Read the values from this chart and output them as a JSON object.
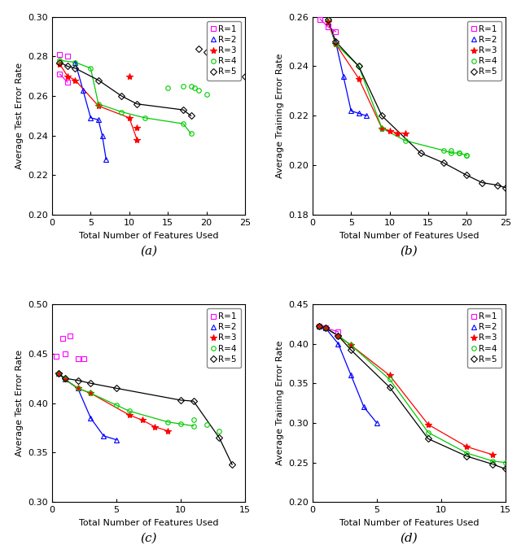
{
  "panels": [
    {
      "label": "(a)",
      "ylabel": "Average Test Error Rate",
      "xlabel": "Total Number of Features Used",
      "xlim": [
        0,
        25
      ],
      "ylim": [
        0.2,
        0.3
      ],
      "yticks": [
        0.2,
        0.22,
        0.24,
        0.26,
        0.28,
        0.3
      ],
      "xticks": [
        0,
        5,
        10,
        15,
        20,
        25
      ],
      "series": {
        "R1": {
          "color": "#FF00FF",
          "marker": "s",
          "line_x": [
            1,
            2
          ],
          "line_y": [
            0.271,
            0.267
          ],
          "scatter_x": [
            1,
            2
          ],
          "scatter_y": [
            0.281,
            0.28
          ]
        },
        "R2": {
          "color": "#0000FF",
          "marker": "^",
          "line_x": [
            3,
            4,
            5,
            6,
            6.5,
            7
          ],
          "line_y": [
            0.277,
            0.263,
            0.249,
            0.248,
            0.24,
            0.228
          ],
          "scatter_x": [],
          "scatter_y": []
        },
        "R3": {
          "color": "#FF0000",
          "marker": "*",
          "line_x": [
            1,
            2,
            3,
            6,
            10,
            11
          ],
          "line_y": [
            0.276,
            0.27,
            0.268,
            0.255,
            0.249,
            0.238
          ],
          "scatter_x": [
            10,
            11
          ],
          "scatter_y": [
            0.27,
            0.244
          ]
        },
        "R4": {
          "color": "#00CC00",
          "marker": "o",
          "line_x": [
            1,
            3,
            5,
            6,
            9,
            12,
            17,
            18
          ],
          "line_y": [
            0.278,
            0.277,
            0.274,
            0.256,
            0.252,
            0.249,
            0.246,
            0.241
          ],
          "scatter_x": [
            15,
            17,
            18,
            18.5,
            19,
            20
          ],
          "scatter_y": [
            0.264,
            0.265,
            0.265,
            0.264,
            0.263,
            0.261
          ]
        },
        "R5": {
          "color": "#000000",
          "marker": "D",
          "line_x": [
            1,
            2,
            3,
            6,
            9,
            11,
            17,
            18
          ],
          "line_y": [
            0.277,
            0.275,
            0.274,
            0.268,
            0.26,
            0.256,
            0.253,
            0.25
          ],
          "scatter_x": [
            19,
            20,
            20.5,
            21,
            22,
            22.5,
            23,
            24,
            25
          ],
          "scatter_y": [
            0.284,
            0.282,
            0.28,
            0.279,
            0.275,
            0.274,
            0.271,
            0.27,
            0.27
          ]
        }
      }
    },
    {
      "label": "(b)",
      "ylabel": "Average Training Error Rate",
      "xlabel": "Total Number of Features Used",
      "xlim": [
        0,
        25
      ],
      "ylim": [
        0.18,
        0.26
      ],
      "yticks": [
        0.18,
        0.2,
        0.22,
        0.24,
        0.26
      ],
      "xticks": [
        0,
        5,
        10,
        15,
        20,
        25
      ],
      "series": {
        "R1": {
          "color": "#FF00FF",
          "marker": "s",
          "line_x": [
            1,
            2,
            3
          ],
          "line_y": [
            0.259,
            0.256,
            0.254
          ],
          "scatter_x": [],
          "scatter_y": []
        },
        "R2": {
          "color": "#0000FF",
          "marker": "^",
          "line_x": [
            2,
            3,
            4,
            5,
            6,
            7
          ],
          "line_y": [
            0.258,
            0.25,
            0.236,
            0.222,
            0.221,
            0.22
          ],
          "scatter_x": [],
          "scatter_y": []
        },
        "R3": {
          "color": "#FF0000",
          "marker": "*",
          "line_x": [
            2,
            3,
            6,
            9,
            10,
            11,
            12
          ],
          "line_y": [
            0.258,
            0.249,
            0.235,
            0.215,
            0.214,
            0.213,
            0.213
          ],
          "scatter_x": [],
          "scatter_y": []
        },
        "R4": {
          "color": "#00CC00",
          "marker": "o",
          "line_x": [
            2,
            3,
            6,
            9,
            12,
            17,
            18,
            19,
            20
          ],
          "line_y": [
            0.259,
            0.249,
            0.24,
            0.215,
            0.21,
            0.206,
            0.205,
            0.205,
            0.204
          ],
          "scatter_x": [
            18,
            19,
            20
          ],
          "scatter_y": [
            0.206,
            0.205,
            0.204
          ]
        },
        "R5": {
          "color": "#000000",
          "marker": "D",
          "line_x": [
            2,
            3,
            6,
            9,
            14,
            17,
            20,
            22,
            24,
            25
          ],
          "line_y": [
            0.259,
            0.25,
            0.24,
            0.22,
            0.205,
            0.201,
            0.196,
            0.193,
            0.192,
            0.191
          ],
          "scatter_x": [],
          "scatter_y": []
        }
      }
    },
    {
      "label": "(c)",
      "ylabel": "Average Test Error Rate",
      "xlabel": "Total Number of Features Used",
      "xlim": [
        0,
        15
      ],
      "ylim": [
        0.3,
        0.5
      ],
      "yticks": [
        0.3,
        0.35,
        0.4,
        0.45,
        0.5
      ],
      "xticks": [
        0,
        5,
        10,
        15
      ],
      "series": {
        "R1": {
          "color": "#FF00FF",
          "marker": "s",
          "line_x": [],
          "line_y": [],
          "scatter_x": [
            0.3,
            0.8,
            1.0,
            1.4,
            2.0,
            2.5
          ],
          "scatter_y": [
            0.447,
            0.465,
            0.45,
            0.468,
            0.445,
            0.445
          ]
        },
        "R2": {
          "color": "#0000FF",
          "marker": "^",
          "line_x": [
            0.5,
            1,
            2,
            3,
            4,
            5
          ],
          "line_y": [
            0.43,
            0.424,
            0.415,
            0.385,
            0.367,
            0.363
          ],
          "scatter_x": [],
          "scatter_y": []
        },
        "R3": {
          "color": "#FF0000",
          "marker": "*",
          "line_x": [
            0.5,
            1,
            2,
            3,
            6,
            7,
            8,
            9
          ],
          "line_y": [
            0.43,
            0.424,
            0.415,
            0.41,
            0.388,
            0.383,
            0.376,
            0.372
          ],
          "scatter_x": [],
          "scatter_y": []
        },
        "R4": {
          "color": "#00CC00",
          "marker": "o",
          "line_x": [
            0.5,
            1,
            2,
            3,
            5,
            6,
            9,
            10,
            11
          ],
          "line_y": [
            0.43,
            0.424,
            0.415,
            0.41,
            0.398,
            0.392,
            0.381,
            0.379,
            0.377
          ],
          "scatter_x": [
            11,
            12,
            13
          ],
          "scatter_y": [
            0.383,
            0.378,
            0.372
          ]
        },
        "R5": {
          "color": "#000000",
          "marker": "D",
          "line_x": [
            0.5,
            1,
            2,
            3,
            5,
            10,
            11,
            13,
            14
          ],
          "line_y": [
            0.43,
            0.425,
            0.423,
            0.42,
            0.415,
            0.403,
            0.402,
            0.365,
            0.338
          ],
          "scatter_x": [],
          "scatter_y": []
        }
      }
    },
    {
      "label": "(d)",
      "ylabel": "Average Training Error Rate",
      "xlabel": "Total Number of Features Used",
      "xlim": [
        0,
        15
      ],
      "ylim": [
        0.2,
        0.45
      ],
      "yticks": [
        0.2,
        0.25,
        0.3,
        0.35,
        0.4,
        0.45
      ],
      "xticks": [
        0,
        5,
        10,
        15
      ],
      "series": {
        "R1": {
          "color": "#FF00FF",
          "marker": "s",
          "line_x": [
            0.5,
            1,
            2
          ],
          "line_y": [
            0.422,
            0.42,
            0.415
          ],
          "scatter_x": [],
          "scatter_y": []
        },
        "R2": {
          "color": "#0000FF",
          "marker": "^",
          "line_x": [
            0.5,
            1,
            2,
            3,
            4,
            5
          ],
          "line_y": [
            0.422,
            0.42,
            0.4,
            0.36,
            0.32,
            0.3
          ],
          "scatter_x": [],
          "scatter_y": []
        },
        "R3": {
          "color": "#FF0000",
          "marker": "*",
          "line_x": [
            0.5,
            1,
            2,
            3,
            6,
            9,
            12,
            14
          ],
          "line_y": [
            0.422,
            0.42,
            0.41,
            0.398,
            0.36,
            0.298,
            0.27,
            0.26
          ],
          "scatter_x": [],
          "scatter_y": []
        },
        "R4": {
          "color": "#00CC00",
          "marker": "o",
          "line_x": [
            0.5,
            1,
            2,
            3,
            6,
            9,
            12,
            14,
            15
          ],
          "line_y": [
            0.422,
            0.42,
            0.41,
            0.398,
            0.355,
            0.288,
            0.262,
            0.252,
            0.25
          ],
          "scatter_x": [],
          "scatter_y": []
        },
        "R5": {
          "color": "#000000",
          "marker": "D",
          "line_x": [
            0.5,
            1,
            2,
            3,
            6,
            9,
            12,
            14,
            15
          ],
          "line_y": [
            0.422,
            0.42,
            0.41,
            0.392,
            0.345,
            0.28,
            0.258,
            0.248,
            0.242
          ],
          "scatter_x": [],
          "scatter_y": []
        }
      }
    }
  ],
  "legend_labels": [
    "R=1",
    "R=2",
    "R=3",
    "R=4",
    "R=5"
  ],
  "legend_colors": [
    "#FF00FF",
    "#0000FF",
    "#FF0000",
    "#00CC00",
    "#000000"
  ],
  "legend_markers": [
    "s",
    "^",
    "*",
    "o",
    "D"
  ],
  "fig_width": 6.4,
  "fig_height": 6.86,
  "fig_dpi": 100
}
